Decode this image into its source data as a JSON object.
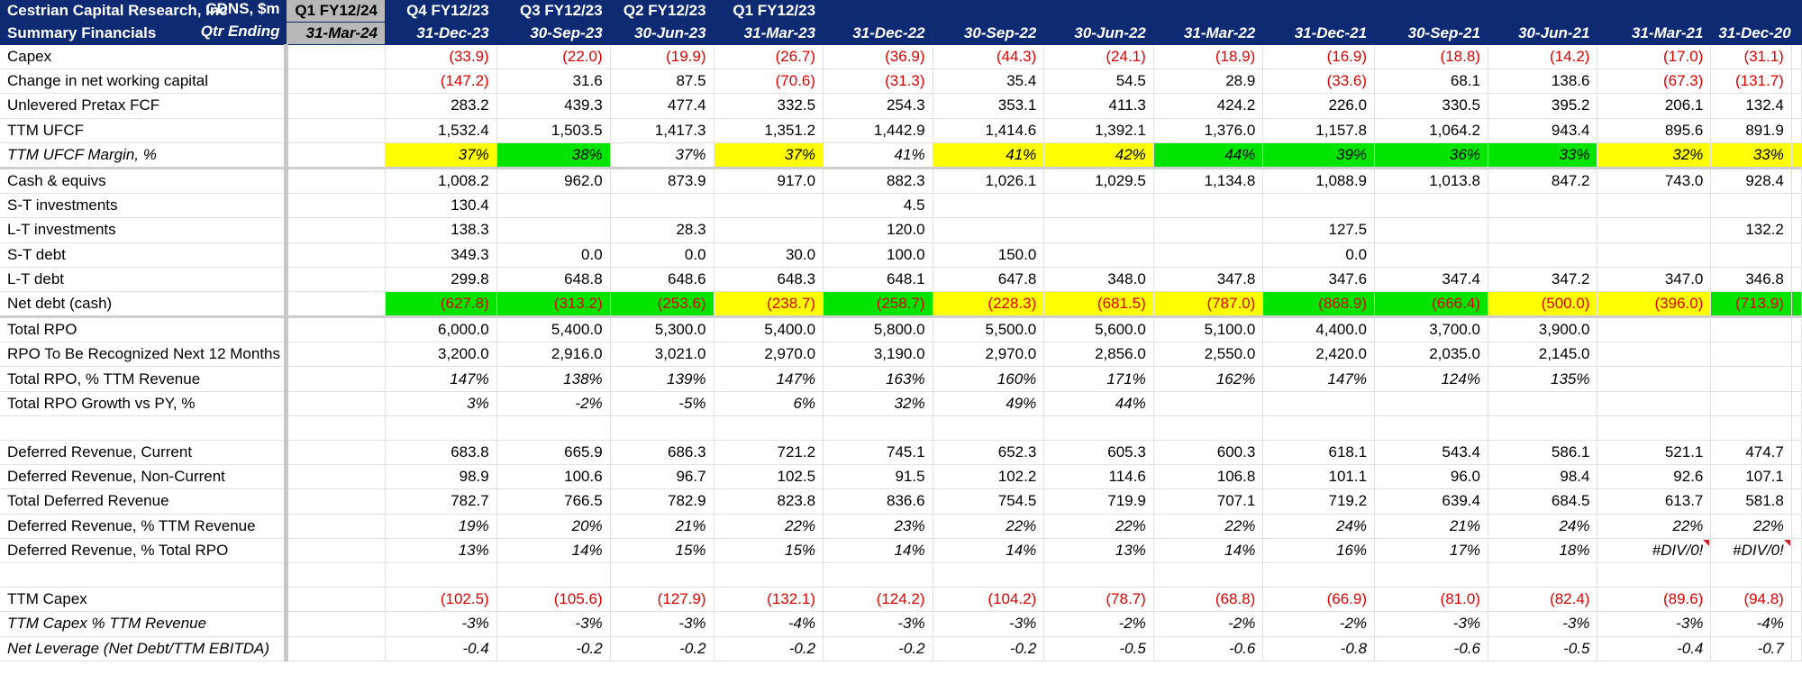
{
  "header": {
    "company": "Cestrian Capital Research, Inc",
    "units": "CDNS, $m",
    "subtitle": "Summary Financials",
    "qtr_ending": "Qtr Ending",
    "columns": [
      {
        "label": "Q1 FY12/24",
        "date": "31-Mar-24"
      },
      {
        "label": "Q4 FY12/23",
        "date": "31-Dec-23"
      },
      {
        "label": "Q3 FY12/23",
        "date": "30-Sep-23"
      },
      {
        "label": "Q2 FY12/23",
        "date": "30-Jun-23"
      },
      {
        "label": "Q1 FY12/23",
        "date": "31-Mar-23"
      },
      {
        "label": "",
        "date": "31-Dec-22"
      },
      {
        "label": "",
        "date": "30-Sep-22"
      },
      {
        "label": "",
        "date": "30-Jun-22"
      },
      {
        "label": "",
        "date": "31-Mar-22"
      },
      {
        "label": "",
        "date": "31-Dec-21"
      },
      {
        "label": "",
        "date": "30-Sep-21"
      },
      {
        "label": "",
        "date": "30-Jun-21"
      },
      {
        "label": "",
        "date": "31-Mar-21"
      },
      {
        "label": "",
        "date": "31-Dec-20"
      }
    ]
  },
  "rows": [
    {
      "label": "Capex",
      "values": [
        "",
        "(33.9)",
        "(22.0)",
        "(19.9)",
        "(26.7)",
        "(36.9)",
        "(44.3)",
        "(24.1)",
        "(18.9)",
        "(16.9)",
        "(18.8)",
        "(14.2)",
        "(17.0)",
        "(31.1)"
      ]
    },
    {
      "label": "Change in net working capital",
      "values": [
        "",
        "(147.2)",
        "31.6",
        "87.5",
        "(70.6)",
        "(31.3)",
        "35.4",
        "54.5",
        "28.9",
        "(33.6)",
        "68.1",
        "138.6",
        "(67.3)",
        "(131.7)"
      ]
    },
    {
      "label": "Unlevered Pretax FCF",
      "values": [
        "",
        "283.2",
        "439.3",
        "477.4",
        "332.5",
        "254.3",
        "353.1",
        "411.3",
        "424.2",
        "226.0",
        "330.5",
        "395.2",
        "206.1",
        "132.4"
      ]
    },
    {
      "label": "TTM UFCF",
      "values": [
        "",
        "1,532.4",
        "1,503.5",
        "1,417.3",
        "1,351.2",
        "1,442.9",
        "1,414.6",
        "1,392.1",
        "1,376.0",
        "1,157.8",
        "1,064.2",
        "943.4",
        "895.6",
        "891.9"
      ]
    },
    {
      "label": "TTM UFCF Margin, %",
      "italic": true,
      "thick": true,
      "values": [
        "",
        "37%",
        "38%",
        "37%",
        "37%",
        "41%",
        "41%",
        "42%",
        "44%",
        "39%",
        "36%",
        "33%",
        "32%",
        "33%"
      ],
      "fills": [
        "",
        "yellow",
        "green",
        "",
        "yellow",
        "",
        "yellow",
        "yellow",
        "green",
        "green",
        "green",
        "green",
        "yellow",
        "yellow"
      ]
    },
    {
      "label": "Cash & equivs",
      "values": [
        "",
        "1,008.2",
        "962.0",
        "873.9",
        "917.0",
        "882.3",
        "1,026.1",
        "1,029.5",
        "1,134.8",
        "1,088.9",
        "1,013.8",
        "847.2",
        "743.0",
        "928.4"
      ]
    },
    {
      "label": "S-T investments",
      "values": [
        "",
        "130.4",
        "",
        "",
        "",
        "4.5",
        "",
        "",
        "",
        "",
        "",
        "",
        "",
        ""
      ]
    },
    {
      "label": "L-T investments",
      "values": [
        "",
        "138.3",
        "",
        "28.3",
        "",
        "120.0",
        "",
        "",
        "",
        "127.5",
        "",
        "",
        "",
        "132.2"
      ]
    },
    {
      "label": "S-T debt",
      "values": [
        "",
        "349.3",
        "0.0",
        "0.0",
        "30.0",
        "100.0",
        "150.0",
        "",
        "",
        "0.0",
        "",
        "",
        "",
        ""
      ]
    },
    {
      "label": "L-T debt",
      "values": [
        "",
        "299.8",
        "648.8",
        "648.6",
        "648.3",
        "648.1",
        "647.8",
        "348.0",
        "347.8",
        "347.6",
        "347.4",
        "347.2",
        "347.0",
        "346.8"
      ]
    },
    {
      "label": "Net debt (cash)",
      "thick": true,
      "values": [
        "",
        "(627.8)",
        "(313.2)",
        "(253.6)",
        "(238.7)",
        "(258.7)",
        "(228.3)",
        "(681.5)",
        "(787.0)",
        "(868.9)",
        "(666.4)",
        "(500.0)",
        "(396.0)",
        "(713.9)"
      ],
      "fills": [
        "",
        "green",
        "green",
        "green",
        "yellow",
        "green",
        "yellow",
        "yellow",
        "yellow",
        "green",
        "green",
        "yellow",
        "yellow",
        "green"
      ]
    },
    {
      "label": "Total RPO",
      "values": [
        "",
        "6,000.0",
        "5,400.0",
        "5,300.0",
        "5,400.0",
        "5,800.0",
        "5,500.0",
        "5,600.0",
        "5,100.0",
        "4,400.0",
        "3,700.0",
        "3,900.0",
        "",
        ""
      ]
    },
    {
      "label": "RPO To Be Recognized Next 12 Months",
      "values": [
        "",
        "3,200.0",
        "2,916.0",
        "3,021.0",
        "2,970.0",
        "3,190.0",
        "2,970.0",
        "2,856.0",
        "2,550.0",
        "2,420.0",
        "2,035.0",
        "2,145.0",
        "",
        ""
      ]
    },
    {
      "label": "Total RPO, % TTM Revenue",
      "italic_values": true,
      "values": [
        "",
        "147%",
        "138%",
        "139%",
        "147%",
        "163%",
        "160%",
        "171%",
        "162%",
        "147%",
        "124%",
        "135%",
        "",
        ""
      ]
    },
    {
      "label": "Total RPO Growth vs PY, %",
      "italic_values": true,
      "values": [
        "",
        "3%",
        "-2%",
        "-5%",
        "6%",
        "32%",
        "49%",
        "44%",
        "",
        "",
        "",
        "",
        "",
        ""
      ]
    },
    {
      "label": "",
      "values": [
        "",
        "",
        "",
        "",
        "",
        "",
        "",
        "",
        "",
        "",
        "",
        "",
        "",
        ""
      ]
    },
    {
      "label": "Deferred Revenue, Current",
      "values": [
        "",
        "683.8",
        "665.9",
        "686.3",
        "721.2",
        "745.1",
        "652.3",
        "605.3",
        "600.3",
        "618.1",
        "543.4",
        "586.1",
        "521.1",
        "474.7"
      ]
    },
    {
      "label": "Deferred Revenue, Non-Current",
      "values": [
        "",
        "98.9",
        "100.6",
        "96.7",
        "102.5",
        "91.5",
        "102.2",
        "114.6",
        "106.8",
        "101.1",
        "96.0",
        "98.4",
        "92.6",
        "107.1"
      ]
    },
    {
      "label": "Total Deferred Revenue",
      "values": [
        "",
        "782.7",
        "766.5",
        "782.9",
        "823.8",
        "836.6",
        "754.5",
        "719.9",
        "707.1",
        "719.2",
        "639.4",
        "684.5",
        "613.7",
        "581.8"
      ]
    },
    {
      "label": "Deferred Revenue, % TTM Revenue",
      "italic_values": true,
      "values": [
        "",
        "19%",
        "20%",
        "21%",
        "22%",
        "23%",
        "22%",
        "22%",
        "22%",
        "24%",
        "21%",
        "24%",
        "22%",
        "22%"
      ]
    },
    {
      "label": "Deferred Revenue, % Total RPO",
      "italic_values": true,
      "values": [
        "",
        "13%",
        "14%",
        "15%",
        "15%",
        "14%",
        "14%",
        "13%",
        "14%",
        "16%",
        "17%",
        "18%",
        "#DIV/0!",
        "#DIV/0!"
      ]
    },
    {
      "label": "",
      "values": [
        "",
        "",
        "",
        "",
        "",
        "",
        "",
        "",
        "",
        "",
        "",
        "",
        "",
        ""
      ]
    },
    {
      "label": "TTM Capex",
      "values": [
        "",
        "(102.5)",
        "(105.6)",
        "(127.9)",
        "(132.1)",
        "(124.2)",
        "(104.2)",
        "(78.7)",
        "(68.8)",
        "(66.9)",
        "(81.0)",
        "(82.4)",
        "(89.6)",
        "(94.8)"
      ]
    },
    {
      "label": "TTM Capex % TTM Revenue",
      "italic": true,
      "values": [
        "",
        "-3%",
        "-3%",
        "-3%",
        "-4%",
        "-3%",
        "-3%",
        "-2%",
        "-2%",
        "-2%",
        "-3%",
        "-3%",
        "-3%",
        "-4%"
      ]
    },
    {
      "label": "Net Leverage (Net Debt/TTM EBITDA)",
      "italic": true,
      "values": [
        "",
        "-0.4",
        "-0.2",
        "-0.2",
        "-0.2",
        "-0.2",
        "-0.2",
        "-0.5",
        "-0.6",
        "-0.8",
        "-0.6",
        "-0.5",
        "-0.4",
        "-0.7"
      ]
    }
  ],
  "colors": {
    "header_bg": "#0d2a73",
    "current_col_bg": "#b8b8b8",
    "fill_yellow": "#ffff00",
    "fill_green": "#00e400",
    "negative_text": "#e00000"
  }
}
